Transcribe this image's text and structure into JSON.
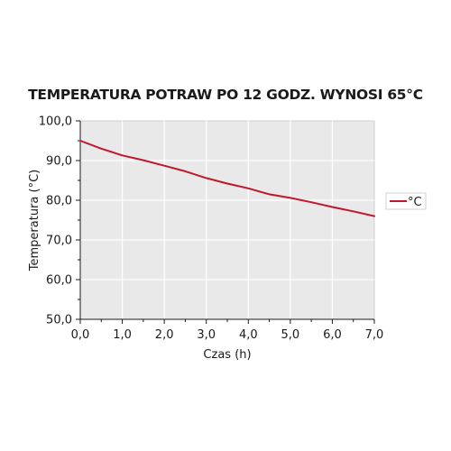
{
  "chart_data": {
    "type": "line",
    "title": "TEMPERATURA POTRAW PO 12 GODZ. WYNOSI 65°C",
    "xlabel": "Czas (h)",
    "ylabel": "Temperatura (°C)",
    "xlim": [
      0,
      7
    ],
    "ylim": [
      50,
      100
    ],
    "x_ticks": [
      "0,0",
      "1,0",
      "2,0",
      "3,0",
      "4,0",
      "5,0",
      "6,0",
      "7,0"
    ],
    "y_ticks": [
      "50,0",
      "60,0",
      "70,0",
      "80,0",
      "90,0",
      "100,0"
    ],
    "grid": true,
    "legend": "right",
    "series": [
      {
        "name": "°C",
        "color": "#c0182b",
        "x": [
          0,
          0.5,
          1.0,
          1.5,
          2.0,
          2.5,
          3.0,
          3.5,
          4.0,
          4.5,
          5.0,
          5.5,
          6.0,
          6.5,
          7.0
        ],
        "y": [
          95.0,
          93.0,
          91.3,
          90.1,
          88.7,
          87.3,
          85.6,
          84.2,
          83.0,
          81.5,
          80.6,
          79.5,
          78.3,
          77.2,
          76.0
        ]
      }
    ]
  }
}
